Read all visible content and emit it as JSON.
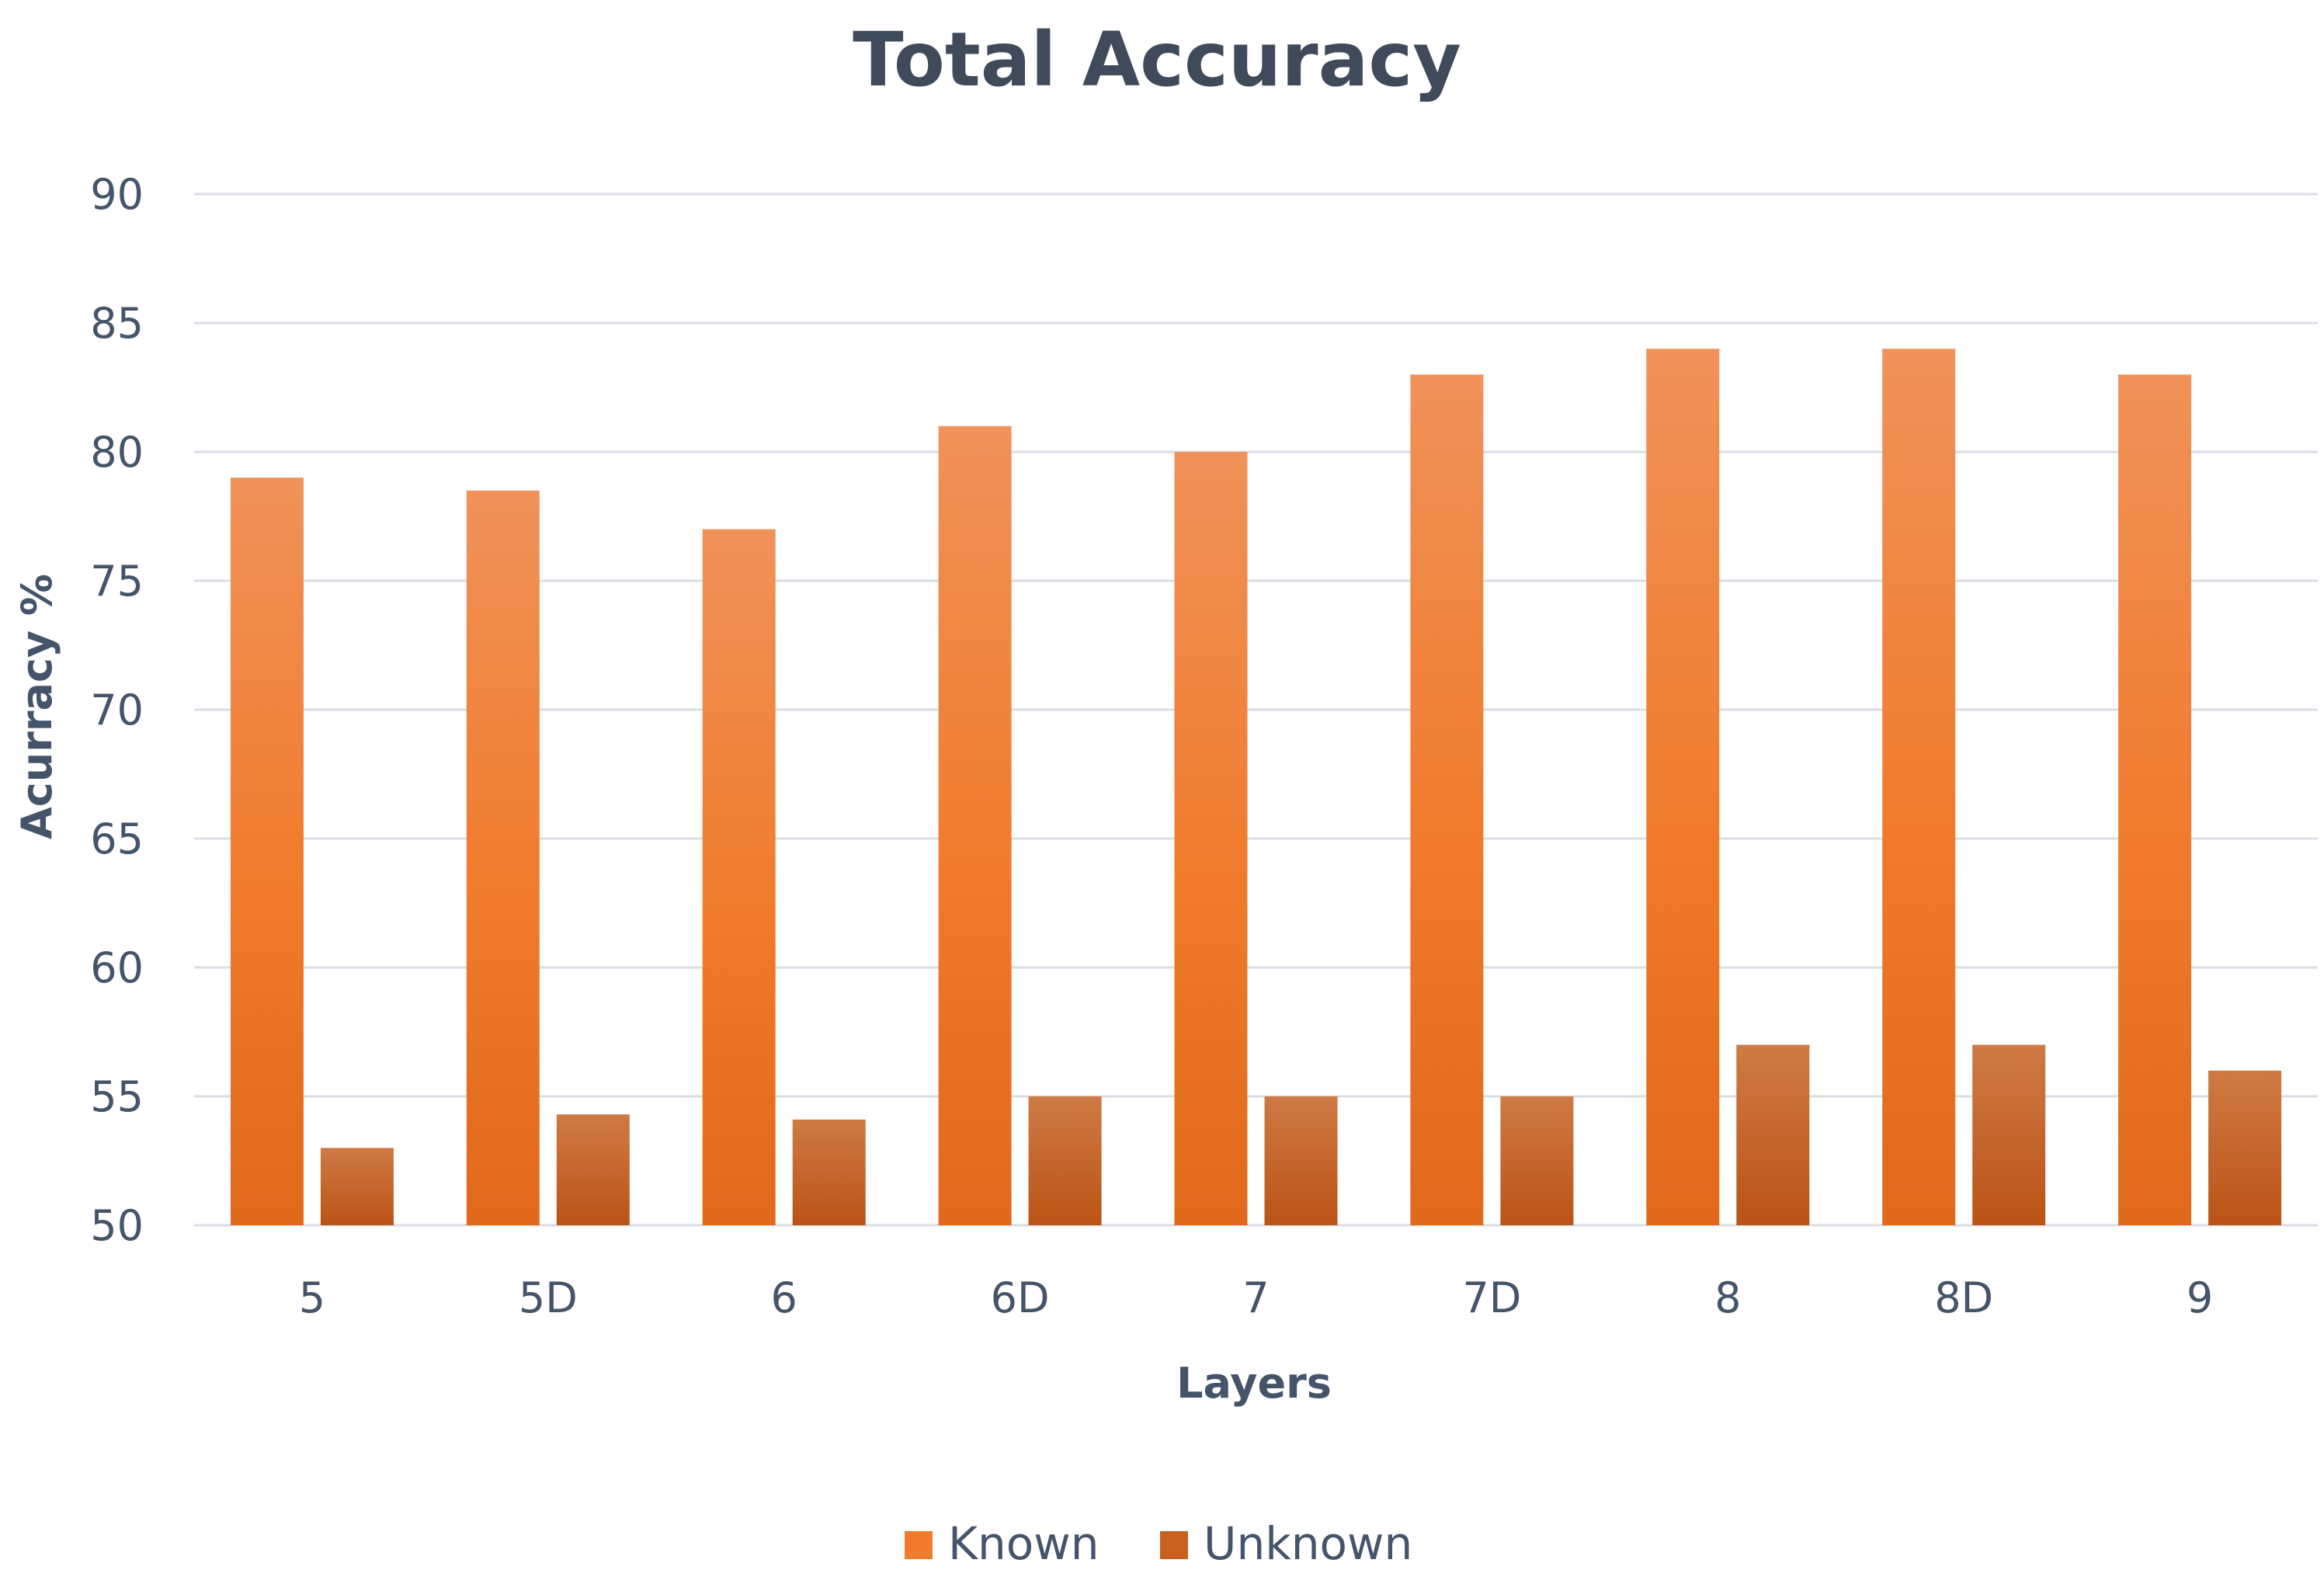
{
  "chart_data": {
    "type": "bar",
    "title": "Total Accuracy",
    "xlabel": "Layers",
    "ylabel": "Acurracy %",
    "categories": [
      "5",
      "5D",
      "6",
      "6D",
      "7",
      "7D",
      "8",
      "8D",
      "9"
    ],
    "series": [
      {
        "name": "Known",
        "values": [
          79,
          78.5,
          77,
          81,
          80,
          83,
          84,
          84,
          83
        ],
        "color": "#f07b2c"
      },
      {
        "name": "Unknown",
        "values": [
          53,
          54.3,
          54.1,
          55,
          55,
          55,
          57,
          57,
          56
        ],
        "color": "#c8601f"
      }
    ],
    "ylim": [
      50,
      90
    ],
    "yticks": [
      "50",
      "55",
      "60",
      "65",
      "70",
      "75",
      "80",
      "85",
      "90"
    ],
    "grid": true,
    "legend": "bottom"
  }
}
